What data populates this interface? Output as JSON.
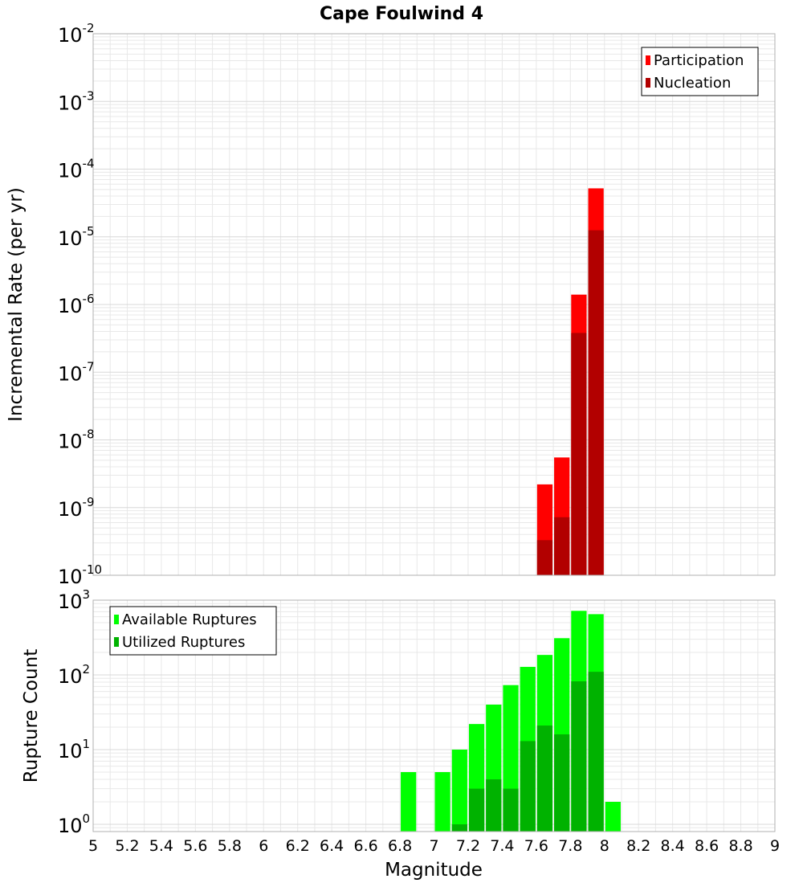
{
  "title": "Cape Foulwind 4",
  "xlabel": "Magnitude",
  "colors": {
    "participation": "#ff0000",
    "nucleation": "#b20000",
    "available": "#00ff00",
    "utilized": "#00b200",
    "grid": "#e8e8e8",
    "frame": "#b0b0b0"
  },
  "chart_data": [
    {
      "type": "bar",
      "ylabel": "Incremental Rate (per yr)",
      "yscale": "log",
      "ylim": [
        1e-10,
        0.01
      ],
      "xlim": [
        5,
        9
      ],
      "bar_width": 0.1,
      "legend": {
        "placement": "top-right",
        "entries": [
          "Participation",
          "Nucleation"
        ]
      },
      "series": [
        {
          "name": "Participation",
          "color": "#ff0000",
          "points": [
            [
              7.65,
              2.2e-09
            ],
            [
              7.75,
              5.5e-09
            ],
            [
              7.85,
              1.4e-06
            ],
            [
              7.95,
              5.2e-05
            ]
          ]
        },
        {
          "name": "Nucleation",
          "color": "#b20000",
          "points": [
            [
              7.65,
              3.3e-10
            ],
            [
              7.75,
              7.2e-10
            ],
            [
              7.85,
              3.8e-07
            ],
            [
              7.95,
              1.25e-05
            ]
          ]
        }
      ],
      "yticks": [
        {
          "base": "10",
          "exp": "-2",
          "value": 0.01
        },
        {
          "base": "10",
          "exp": "-3",
          "value": 0.001
        },
        {
          "base": "10",
          "exp": "-4",
          "value": 0.0001
        },
        {
          "base": "10",
          "exp": "-5",
          "value": 1e-05
        },
        {
          "base": "10",
          "exp": "-6",
          "value": 1e-06
        },
        {
          "base": "10",
          "exp": "-7",
          "value": 1e-07
        },
        {
          "base": "10",
          "exp": "-8",
          "value": 1e-08
        },
        {
          "base": "10",
          "exp": "-9",
          "value": 1e-09
        },
        {
          "base": "10",
          "exp": "-10",
          "value": 1e-10
        }
      ],
      "grid": true
    },
    {
      "type": "bar",
      "ylabel": "Rupture Count",
      "yscale": "log",
      "ylim": [
        0.8,
        1000
      ],
      "xlim": [
        5,
        9
      ],
      "bar_width": 0.1,
      "legend": {
        "placement": "top-left",
        "entries": [
          "Available Ruptures",
          "Utilized Ruptures"
        ]
      },
      "series": [
        {
          "name": "Available Ruptures",
          "color": "#00ff00",
          "points": [
            [
              6.85,
              5
            ],
            [
              7.05,
              5
            ],
            [
              7.15,
              10
            ],
            [
              7.25,
              22
            ],
            [
              7.35,
              40
            ],
            [
              7.45,
              73
            ],
            [
              7.55,
              128
            ],
            [
              7.65,
              185
            ],
            [
              7.75,
              310
            ],
            [
              7.85,
              720
            ],
            [
              7.95,
              650
            ],
            [
              8.05,
              2
            ]
          ]
        },
        {
          "name": "Utilized Ruptures",
          "color": "#00b200",
          "points": [
            [
              7.15,
              1
            ],
            [
              7.25,
              3
            ],
            [
              7.35,
              4
            ],
            [
              7.45,
              3
            ],
            [
              7.55,
              13
            ],
            [
              7.65,
              21
            ],
            [
              7.75,
              16
            ],
            [
              7.85,
              82
            ],
            [
              7.95,
              110
            ]
          ]
        }
      ],
      "yticks": [
        {
          "base": "10",
          "exp": "3",
          "value": 1000
        },
        {
          "base": "10",
          "exp": "2",
          "value": 100
        },
        {
          "base": "10",
          "exp": "1",
          "value": 10
        },
        {
          "base": "10",
          "exp": "0",
          "value": 1
        }
      ],
      "grid": true
    }
  ],
  "xticks": [
    "5",
    "5.2",
    "5.4",
    "5.6",
    "5.8",
    "6",
    "6.2",
    "6.4",
    "6.6",
    "6.8",
    "7",
    "7.2",
    "7.4",
    "7.6",
    "7.8",
    "8",
    "8.2",
    "8.4",
    "8.6",
    "8.8",
    "9"
  ]
}
